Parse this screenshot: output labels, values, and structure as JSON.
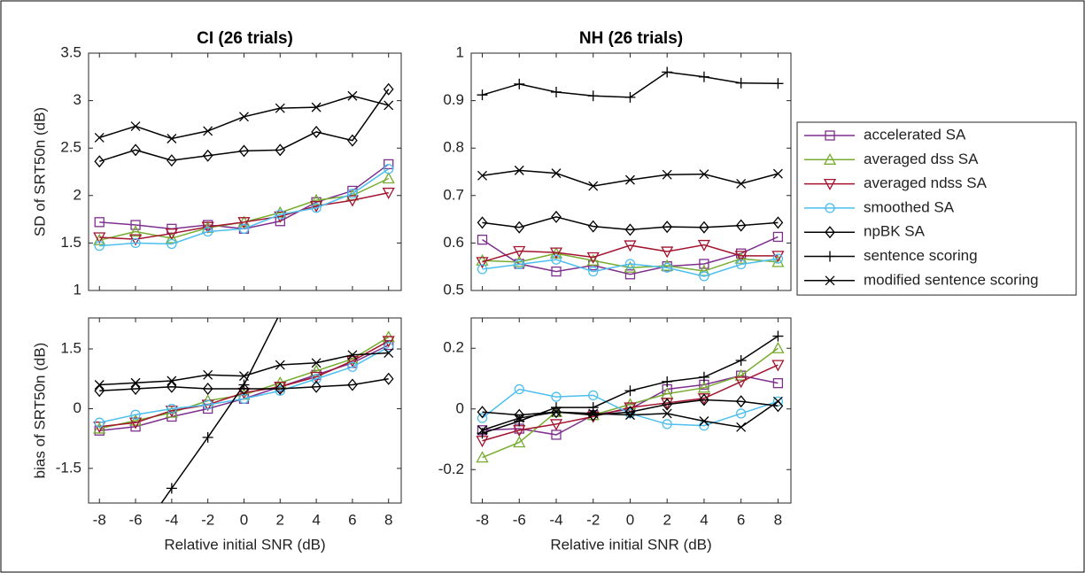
{
  "chart_data": [
    {
      "type": "line",
      "title": "CI (26 trials)",
      "ylabel": "SD of SRT50n   (dB)",
      "x": [
        -8,
        -6,
        -4,
        -2,
        0,
        2,
        4,
        6,
        8
      ],
      "xlim": [
        -8.6,
        8.7
      ],
      "xticks": [
        -8,
        -6,
        -4,
        -2,
        0,
        2,
        4,
        6,
        8
      ],
      "xtick_labels": false,
      "ylim": [
        1,
        3.5
      ],
      "yticks": [
        1,
        1.5,
        2,
        2.5,
        3,
        3.5
      ],
      "series": [
        {
          "name": "accelerated SA",
          "color": "#7E2F8E",
          "marker": "square",
          "values": [
            1.72,
            1.69,
            1.65,
            1.69,
            1.65,
            1.73,
            1.93,
            2.05,
            2.33
          ]
        },
        {
          "name": "averaged dss SA",
          "color": "#77AC30",
          "marker": "triangle-up",
          "values": [
            1.53,
            1.62,
            1.55,
            1.66,
            1.72,
            1.82,
            1.95,
            2.0,
            2.18
          ]
        },
        {
          "name": "averaged ndss SA",
          "color": "#A2142F",
          "marker": "triangle-down",
          "values": [
            1.56,
            1.54,
            1.6,
            1.67,
            1.72,
            1.78,
            1.89,
            1.95,
            2.03
          ]
        },
        {
          "name": "smoothed SA",
          "color": "#4DBEEE",
          "marker": "circle",
          "values": [
            1.47,
            1.5,
            1.49,
            1.62,
            1.65,
            1.8,
            1.87,
            2.02,
            2.28
          ]
        },
        {
          "name": "npBK SA",
          "color": "#000000",
          "marker": "diamond",
          "values": [
            2.36,
            2.48,
            2.37,
            2.42,
            2.47,
            2.48,
            2.67,
            2.58,
            3.12
          ]
        },
        {
          "name": "sentence scoring",
          "color": "#000000",
          "marker": "plus",
          "values": [
            null,
            null,
            null,
            null,
            null,
            null,
            null,
            null,
            null
          ]
        },
        {
          "name": "modified sentence scoring",
          "color": "#000000",
          "marker": "x",
          "values": [
            2.61,
            2.73,
            2.6,
            2.68,
            2.83,
            2.92,
            2.93,
            3.05,
            2.95
          ]
        }
      ]
    },
    {
      "type": "line",
      "title": "NH (26 trials)",
      "legend": "right",
      "x": [
        -8,
        -6,
        -4,
        -2,
        0,
        2,
        4,
        6,
        8
      ],
      "xlim": [
        -8.6,
        8.7
      ],
      "xticks": [
        -8,
        -6,
        -4,
        -2,
        0,
        2,
        4,
        6,
        8
      ],
      "xtick_labels": false,
      "ylim": [
        0.5,
        1
      ],
      "yticks": [
        0.5,
        0.6,
        0.7,
        0.8,
        0.9,
        1
      ],
      "series": [
        {
          "name": "accelerated SA",
          "color": "#7E2F8E",
          "marker": "square",
          "values": [
            0.607,
            0.556,
            0.54,
            0.553,
            0.534,
            0.551,
            0.556,
            0.578,
            0.613
          ]
        },
        {
          "name": "averaged dss SA",
          "color": "#77AC30",
          "marker": "triangle-up",
          "values": [
            0.563,
            0.56,
            0.578,
            0.563,
            0.548,
            0.552,
            0.541,
            0.567,
            0.56
          ]
        },
        {
          "name": "averaged ndss SA",
          "color": "#A2142F",
          "marker": "triangle-down",
          "values": [
            0.56,
            0.583,
            0.58,
            0.57,
            0.595,
            0.582,
            0.596,
            0.573,
            0.573
          ]
        },
        {
          "name": "smoothed SA",
          "color": "#4DBEEE",
          "marker": "circle",
          "values": [
            0.545,
            0.555,
            0.565,
            0.54,
            0.556,
            0.548,
            0.53,
            0.555,
            0.567
          ]
        },
        {
          "name": "npBK SA",
          "color": "#000000",
          "marker": "diamond",
          "values": [
            0.643,
            0.633,
            0.655,
            0.635,
            0.628,
            0.634,
            0.633,
            0.637,
            0.643
          ]
        },
        {
          "name": "sentence scoring",
          "color": "#000000",
          "marker": "plus",
          "values": [
            0.912,
            0.935,
            0.918,
            0.91,
            0.907,
            0.96,
            0.95,
            0.937,
            0.936
          ]
        },
        {
          "name": "modified sentence scoring",
          "color": "#000000",
          "marker": "x",
          "values": [
            0.742,
            0.753,
            0.747,
            0.72,
            0.733,
            0.744,
            0.745,
            0.725,
            0.746
          ]
        }
      ]
    },
    {
      "type": "line",
      "ylabel": "bias of SRT50n   (dB)",
      "xlabel": "Relative initial SNR   (dB)",
      "x": [
        -8,
        -6,
        -4,
        -2,
        0,
        2,
        4,
        6,
        8
      ],
      "xlim": [
        -8.6,
        8.7
      ],
      "xticks": [
        -8,
        -6,
        -4,
        -2,
        0,
        2,
        4,
        6,
        8
      ],
      "ylim": [
        -2.37,
        2.28
      ],
      "yticks": [
        -1.5,
        0,
        1.5
      ],
      "series": [
        {
          "name": "accelerated SA",
          "color": "#7E2F8E",
          "marker": "square",
          "values": [
            -0.55,
            -0.45,
            -0.2,
            0.0,
            0.25,
            0.55,
            0.85,
            1.15,
            1.6
          ]
        },
        {
          "name": "averaged dss SA",
          "color": "#77AC30",
          "marker": "triangle-up",
          "values": [
            -0.5,
            -0.3,
            -0.1,
            0.2,
            0.35,
            0.65,
            0.95,
            1.25,
            1.8
          ]
        },
        {
          "name": "averaged ndss SA",
          "color": "#A2142F",
          "marker": "triangle-down",
          "values": [
            -0.45,
            -0.35,
            -0.05,
            0.1,
            0.4,
            0.55,
            0.8,
            1.2,
            1.7
          ]
        },
        {
          "name": "smoothed SA",
          "color": "#4DBEEE",
          "marker": "circle",
          "values": [
            -0.35,
            -0.15,
            0.0,
            0.1,
            0.25,
            0.45,
            0.75,
            1.05,
            1.55
          ]
        },
        {
          "name": "npBK SA",
          "color": "#000000",
          "marker": "diamond",
          "values": [
            0.45,
            0.5,
            0.55,
            0.5,
            0.5,
            0.5,
            0.55,
            0.6,
            0.75
          ]
        },
        {
          "name": "sentence scoring",
          "color": "#000000",
          "marker": "plus",
          "values": [
            null,
            -3.3,
            -2.0,
            -0.72,
            0.6,
            2.4,
            null,
            null,
            null
          ]
        },
        {
          "name": "modified sentence scoring",
          "color": "#000000",
          "marker": "x",
          "values": [
            0.6,
            0.65,
            0.7,
            0.85,
            0.82,
            1.1,
            1.15,
            1.35,
            1.4
          ]
        }
      ]
    },
    {
      "type": "line",
      "xlabel": "Relative initial SNR   (dB)",
      "x": [
        -8,
        -6,
        -4,
        -2,
        0,
        2,
        4,
        6,
        8
      ],
      "xlim": [
        -8.6,
        8.7
      ],
      "xticks": [
        -8,
        -6,
        -4,
        -2,
        0,
        2,
        4,
        6,
        8
      ],
      "ylim": [
        -0.31,
        0.3
      ],
      "yticks": [
        -0.2,
        0,
        0.2
      ],
      "series": [
        {
          "name": "accelerated SA",
          "color": "#7E2F8E",
          "marker": "square",
          "values": [
            -0.07,
            -0.065,
            -0.085,
            -0.02,
            0.0,
            0.065,
            0.08,
            0.11,
            0.085
          ]
        },
        {
          "name": "averaged dss SA",
          "color": "#77AC30",
          "marker": "triangle-up",
          "values": [
            -0.16,
            -0.11,
            -0.01,
            -0.02,
            0.015,
            0.05,
            0.07,
            0.11,
            0.2
          ]
        },
        {
          "name": "averaged ndss SA",
          "color": "#A2142F",
          "marker": "triangle-down",
          "values": [
            -0.105,
            -0.07,
            -0.05,
            -0.025,
            0.005,
            0.02,
            0.035,
            0.09,
            0.145
          ]
        },
        {
          "name": "smoothed SA",
          "color": "#4DBEEE",
          "marker": "circle",
          "values": [
            -0.03,
            0.065,
            0.04,
            0.045,
            -0.015,
            -0.05,
            -0.055,
            -0.015,
            0.025
          ]
        },
        {
          "name": "npBK SA",
          "color": "#000000",
          "marker": "diamond",
          "values": [
            -0.01,
            -0.02,
            -0.01,
            -0.02,
            -0.01,
            0.015,
            0.03,
            0.025,
            0.01
          ]
        },
        {
          "name": "sentence scoring",
          "color": "#000000",
          "marker": "plus",
          "values": [
            -0.08,
            -0.04,
            0.005,
            0.005,
            0.06,
            0.09,
            0.105,
            0.16,
            0.24
          ]
        },
        {
          "name": "modified sentence scoring",
          "color": "#000000",
          "marker": "x",
          "values": [
            -0.07,
            -0.03,
            -0.01,
            -0.015,
            -0.02,
            -0.015,
            -0.04,
            -0.06,
            0.025
          ]
        }
      ]
    }
  ]
}
